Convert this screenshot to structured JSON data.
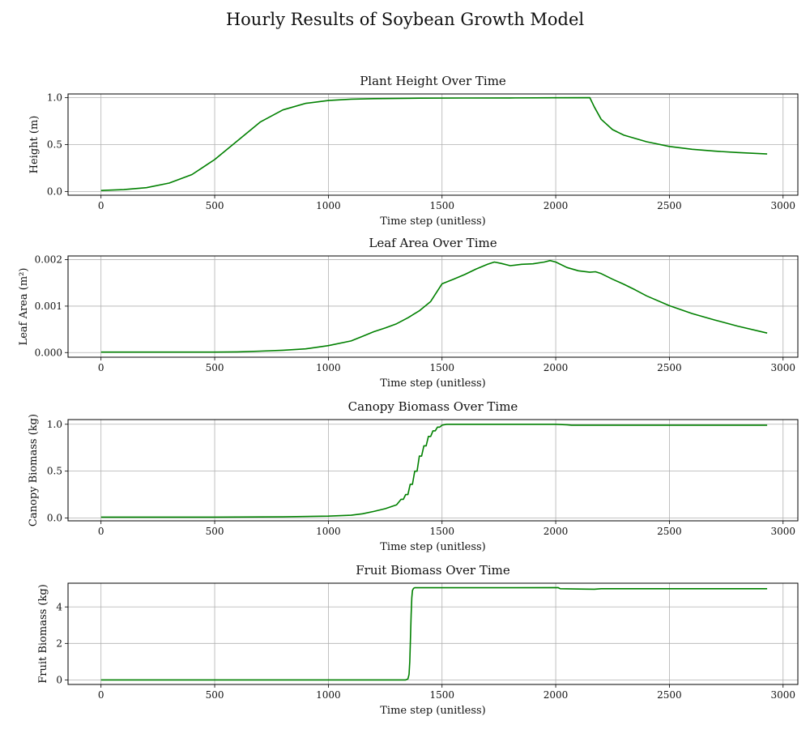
{
  "figure": {
    "title": "Hourly Results of Soybean Growth Model"
  },
  "chart_data": [
    {
      "type": "line",
      "title": "Plant Height Over Time",
      "xlabel": "Time step (unitless)",
      "ylabel": "Height (m)",
      "xlim": [
        -145,
        3065
      ],
      "ylim": [
        -0.04,
        1.04
      ],
      "xticks": [
        0,
        500,
        1000,
        1500,
        2000,
        2500,
        3000
      ],
      "yticks": [
        0.0,
        0.5,
        1.0
      ],
      "ytick_labels": [
        "0.0",
        "0.5",
        "1.0"
      ],
      "grid": true,
      "color": "#008000",
      "x": [
        0,
        100,
        200,
        300,
        400,
        500,
        600,
        700,
        800,
        900,
        1000,
        1100,
        1200,
        1400,
        1600,
        1800,
        2000,
        2150,
        2170,
        2200,
        2250,
        2300,
        2400,
        2500,
        2600,
        2700,
        2800,
        2930
      ],
      "y": [
        0.01,
        0.02,
        0.04,
        0.09,
        0.18,
        0.34,
        0.54,
        0.74,
        0.87,
        0.94,
        0.97,
        0.985,
        0.99,
        0.995,
        0.997,
        0.998,
        0.999,
        1.0,
        0.9,
        0.77,
        0.66,
        0.6,
        0.53,
        0.48,
        0.45,
        0.43,
        0.415,
        0.4
      ]
    },
    {
      "type": "line",
      "title": "Leaf Area Over Time",
      "xlabel": "Time step (unitless)",
      "ylabel": "Leaf Area (m²)",
      "xlim": [
        -145,
        3065
      ],
      "ylim": [
        -0.0001,
        0.00208
      ],
      "xticks": [
        0,
        500,
        1000,
        1500,
        2000,
        2500,
        3000
      ],
      "yticks": [
        0.0,
        0.001,
        0.002
      ],
      "ytick_labels": [
        "0.000",
        "0.001",
        "0.002"
      ],
      "grid": true,
      "color": "#008000",
      "x": [
        0,
        500,
        600,
        700,
        800,
        900,
        1000,
        1100,
        1150,
        1200,
        1250,
        1300,
        1350,
        1400,
        1450,
        1500,
        1550,
        1600,
        1650,
        1700,
        1730,
        1760,
        1800,
        1850,
        1900,
        1950,
        1975,
        2000,
        2050,
        2100,
        2150,
        2175,
        2200,
        2250,
        2300,
        2350,
        2400,
        2500,
        2600,
        2700,
        2800,
        2930
      ],
      "y": [
        1e-05,
        1e-05,
        1.5e-05,
        3e-05,
        5e-05,
        8e-05,
        0.00015,
        0.00025,
        0.00035,
        0.00045,
        0.00053,
        0.00062,
        0.00075,
        0.0009,
        0.0011,
        0.00148,
        0.00158,
        0.00168,
        0.0018,
        0.0019,
        0.00195,
        0.00192,
        0.00187,
        0.0019,
        0.00191,
        0.00195,
        0.00198,
        0.00195,
        0.00183,
        0.00176,
        0.00173,
        0.00174,
        0.0017,
        0.00158,
        0.00147,
        0.00135,
        0.00122,
        0.00101,
        0.00084,
        0.0007,
        0.00057,
        0.00042
      ]
    },
    {
      "type": "line",
      "title": "Canopy Biomass Over Time",
      "xlabel": "Time step (unitless)",
      "ylabel": "Canopy Biomass (kg)",
      "xlim": [
        -145,
        3065
      ],
      "ylim": [
        -0.03,
        1.05
      ],
      "xticks": [
        0,
        500,
        1000,
        1500,
        2000,
        2500,
        3000
      ],
      "yticks": [
        0.0,
        0.5,
        1.0
      ],
      "ytick_labels": [
        "0.0",
        "0.5",
        "1.0"
      ],
      "grid": true,
      "color": "#008000",
      "x": [
        0,
        500,
        800,
        1000,
        1100,
        1150,
        1200,
        1250,
        1300,
        1320,
        1330,
        1340,
        1350,
        1360,
        1370,
        1380,
        1390,
        1400,
        1410,
        1420,
        1430,
        1440,
        1450,
        1460,
        1470,
        1480,
        1490,
        1500,
        1520,
        1550,
        1600,
        1700,
        2000,
        2050,
        2070,
        2500,
        2930
      ],
      "y": [
        0.01,
        0.01,
        0.012,
        0.02,
        0.03,
        0.045,
        0.07,
        0.1,
        0.14,
        0.2,
        0.2,
        0.25,
        0.25,
        0.36,
        0.36,
        0.5,
        0.5,
        0.66,
        0.66,
        0.77,
        0.77,
        0.87,
        0.87,
        0.93,
        0.93,
        0.97,
        0.97,
        0.99,
        1.0,
        1.0,
        1.0,
        1.0,
        1.0,
        0.995,
        0.99,
        0.99,
        0.99
      ]
    },
    {
      "type": "line",
      "title": "Fruit Biomass Over Time",
      "xlabel": "Time step (unitless)",
      "ylabel": "Fruit Biomass (kg)",
      "xlim": [
        -145,
        3065
      ],
      "ylim": [
        -0.25,
        5.3
      ],
      "xticks": [
        0,
        500,
        1000,
        1500,
        2000,
        2500,
        3000
      ],
      "yticks": [
        0,
        2,
        4
      ],
      "ytick_labels": [
        "0",
        "2",
        "4"
      ],
      "grid": true,
      "color": "#008000",
      "x": [
        0,
        1000,
        1340,
        1350,
        1355,
        1358,
        1361,
        1364,
        1367,
        1370,
        1375,
        1380,
        1400,
        1500,
        1800,
        2010,
        2015,
        2020,
        2100,
        2170,
        2200,
        2500,
        2930
      ],
      "y": [
        0,
        0,
        0,
        0.05,
        0.3,
        1.0,
        2.2,
        3.6,
        4.5,
        4.9,
        5.02,
        5.05,
        5.05,
        5.05,
        5.05,
        5.06,
        5.03,
        5.0,
        4.98,
        4.97,
        5.0,
        5.0,
        5.0
      ]
    }
  ]
}
